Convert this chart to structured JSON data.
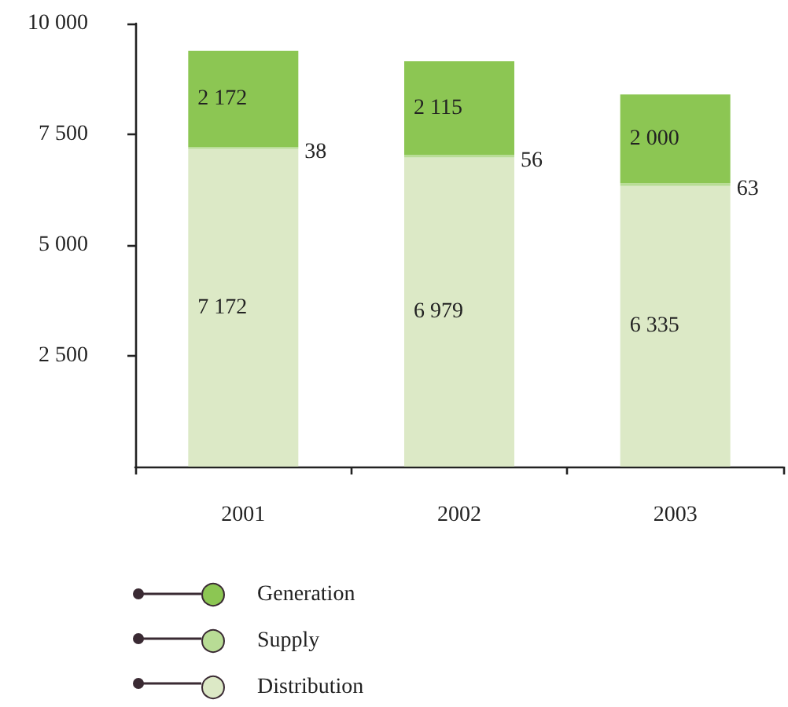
{
  "chart_data": {
    "type": "bar",
    "stacked": true,
    "categories": [
      "2001",
      "2002",
      "2003"
    ],
    "series": [
      {
        "name": "Distribution",
        "color": "#dce9c6",
        "values": [
          7172,
          6979,
          6335
        ],
        "value_labels": [
          "7 172",
          "6 979",
          "6 335"
        ]
      },
      {
        "name": "Supply",
        "color": "#b8dc95",
        "values": [
          38,
          56,
          63
        ],
        "value_labels": [
          "38",
          "56",
          "63"
        ]
      },
      {
        "name": "Generation",
        "color": "#8cc653",
        "values": [
          2172,
          2115,
          2000
        ],
        "value_labels": [
          "2 172",
          "2 115",
          "2 000"
        ]
      }
    ],
    "ylim": [
      0,
      10000
    ],
    "yticks": [
      {
        "value": 2500,
        "label": "2 500"
      },
      {
        "value": 5000,
        "label": "5 000"
      },
      {
        "value": 7500,
        "label": "7 500"
      },
      {
        "value": 10000,
        "label": "10 000"
      }
    ],
    "grid": false,
    "legend": "bottom left"
  }
}
